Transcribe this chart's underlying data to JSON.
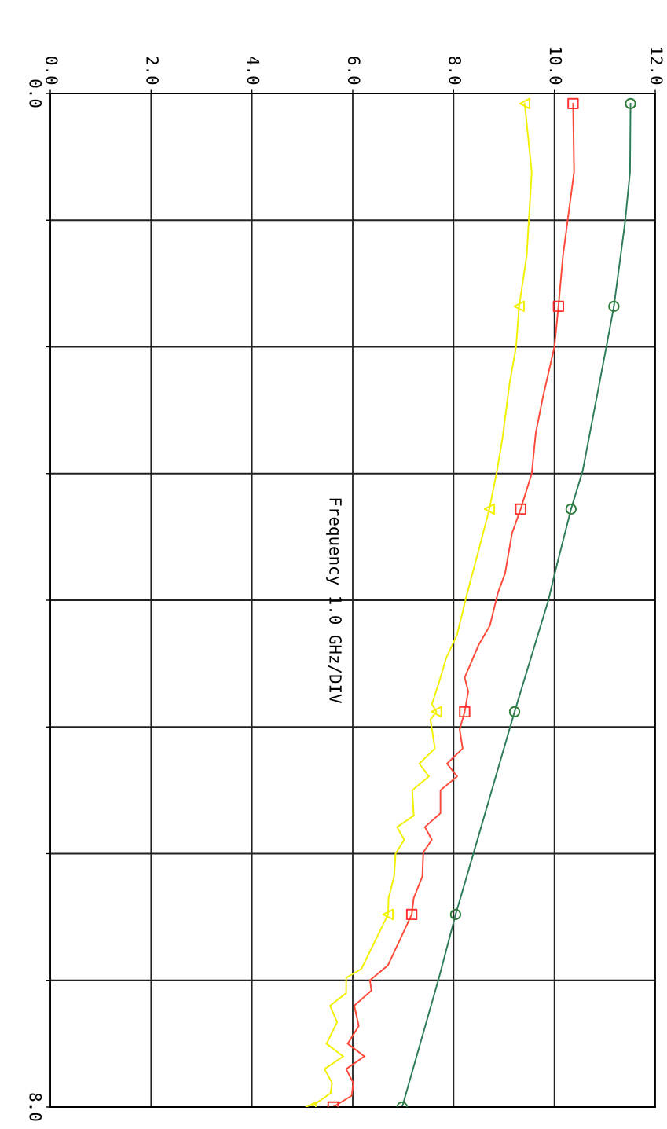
{
  "chart_data": {
    "type": "line",
    "ylabel": "Frequency 1.0 GHz/DIV",
    "ylim": [
      8,
      0
    ],
    "yticks": [
      {
        "value": 0,
        "label": "0.0"
      },
      {
        "value": 1,
        "label": null
      },
      {
        "value": 2,
        "label": null
      },
      {
        "value": 3,
        "label": null
      },
      {
        "value": 4,
        "label": null
      },
      {
        "value": 5,
        "label": null
      },
      {
        "value": 6,
        "label": null
      },
      {
        "value": 7,
        "label": null
      },
      {
        "value": 8,
        "label": "8.0"
      }
    ],
    "xlim": [
      0,
      12
    ],
    "xticks": [
      {
        "value": 0,
        "label": "0.0"
      },
      {
        "value": 2,
        "label": "2.0"
      },
      {
        "value": 4,
        "label": "4.0"
      },
      {
        "value": 6,
        "label": "6.0"
      },
      {
        "value": 8,
        "label": "8.0"
      },
      {
        "value": 10,
        "label": "10.0"
      },
      {
        "value": 12,
        "label": "12.0"
      }
    ],
    "grid": true,
    "series": [
      {
        "color": "#2e7d5a",
        "values": [
          0.08,
          0.62,
          1.02,
          1.68,
          2.0,
          2.98,
          3.28,
          3.75,
          4.0,
          4.88,
          5.99,
          6.48,
          6.98,
          8.0
        ],
        "x": [
          11.51,
          11.5,
          11.4,
          11.18,
          11.03,
          10.56,
          10.33,
          10.03,
          9.88,
          9.21,
          8.4,
          8.04,
          7.71,
          6.98
        ]
      },
      {
        "color": "#ff4a3a",
        "values": [
          0.08,
          0.62,
          1.28,
          1.68,
          2.0,
          2.4,
          2.68,
          3.0,
          3.28,
          3.47,
          3.79,
          3.94,
          4.2,
          4.35,
          4.61,
          4.72,
          4.88,
          5.02,
          5.17,
          5.29,
          5.39,
          5.5,
          5.68,
          5.79,
          5.89,
          5.99,
          6.18,
          6.35,
          6.48,
          6.88,
          7.0,
          7.08,
          7.2,
          7.36,
          7.5,
          7.6,
          7.7,
          7.81,
          7.91,
          8.0
        ],
        "x": [
          10.37,
          10.39,
          10.17,
          10.08,
          10.0,
          9.77,
          9.63,
          9.55,
          9.33,
          9.16,
          9.02,
          8.88,
          8.72,
          8.5,
          8.22,
          8.29,
          8.22,
          8.12,
          8.18,
          7.87,
          8.07,
          7.74,
          7.74,
          7.43,
          7.57,
          7.4,
          7.38,
          7.21,
          7.17,
          6.7,
          6.34,
          6.37,
          6.03,
          6.12,
          5.9,
          6.23,
          5.87,
          6.01,
          5.98,
          5.61
        ]
      },
      {
        "color": "#f2f000",
        "values": [
          0.08,
          0.62,
          1.28,
          1.68,
          2.0,
          2.29,
          2.72,
          2.98,
          3.28,
          3.6,
          3.75,
          3.96,
          4.27,
          4.46,
          4.65,
          4.82,
          4.88,
          4.94,
          5.17,
          5.29,
          5.39,
          5.5,
          5.7,
          5.79,
          5.89,
          6.0,
          6.18,
          6.35,
          6.48,
          6.91,
          6.98,
          7.1,
          7.2,
          7.33,
          7.5,
          7.6,
          7.7,
          7.81,
          7.89,
          8.0
        ],
        "x": [
          9.41,
          9.55,
          9.45,
          9.3,
          9.24,
          9.11,
          8.97,
          8.86,
          8.71,
          8.5,
          8.4,
          8.26,
          8.07,
          7.85,
          7.71,
          7.57,
          7.66,
          7.54,
          7.63,
          7.32,
          7.51,
          7.18,
          7.21,
          6.88,
          7.02,
          6.85,
          6.82,
          6.71,
          6.7,
          6.17,
          5.87,
          5.87,
          5.55,
          5.69,
          5.48,
          5.81,
          5.44,
          5.59,
          5.56,
          5.17
        ]
      },
      {
        "type": "scatter",
        "marker": "circle",
        "color": "#2e7d3a",
        "values": [
          0.08,
          1.68,
          3.28,
          4.88,
          6.48,
          8.0
        ],
        "x": [
          11.51,
          11.18,
          10.33,
          9.21,
          8.04,
          6.98
        ]
      },
      {
        "type": "scatter",
        "marker": "square",
        "color": "#ff3030",
        "values": [
          0.08,
          1.68,
          3.28,
          4.88,
          6.48,
          8.0
        ],
        "x": [
          10.37,
          10.08,
          9.33,
          8.22,
          7.17,
          5.61
        ]
      },
      {
        "type": "scatter",
        "marker": "triangle",
        "color": "#f2f000",
        "values": [
          0.08,
          1.68,
          3.28,
          4.88,
          6.48,
          8.0
        ],
        "x": [
          9.41,
          9.3,
          8.71,
          7.66,
          6.7,
          5.17
        ]
      }
    ]
  }
}
